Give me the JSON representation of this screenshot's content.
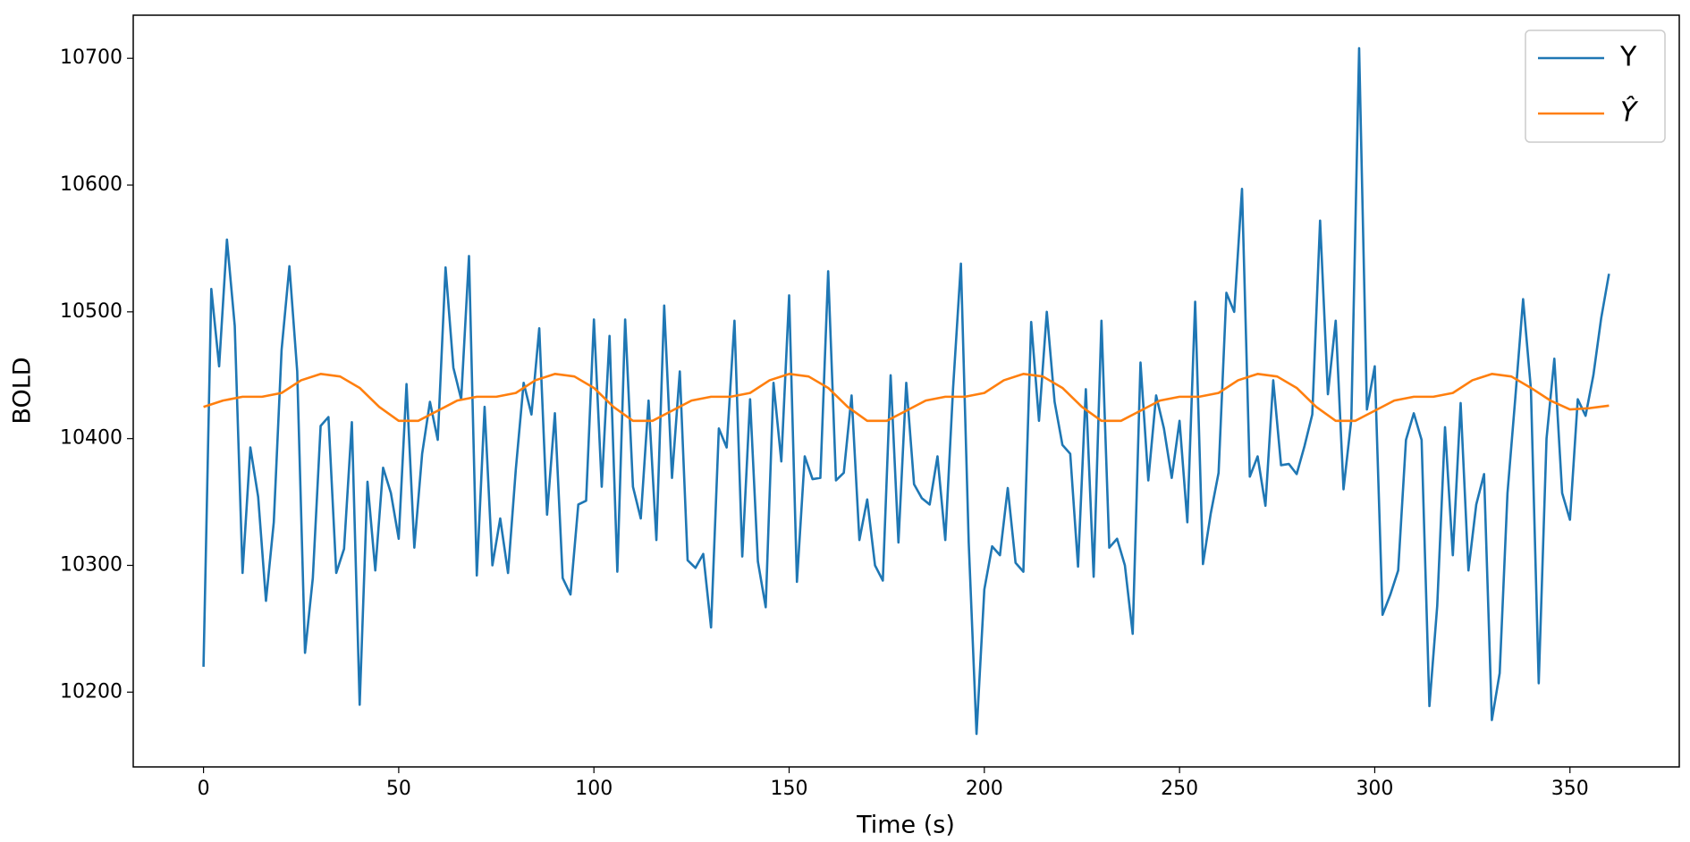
{
  "chart_data": {
    "type": "line",
    "x_label": "Time (s)",
    "y_label": "BOLD",
    "xlim": [
      -18,
      378
    ],
    "ylim": [
      10141,
      10734
    ],
    "xticks": [
      0,
      50,
      100,
      150,
      200,
      250,
      300,
      350
    ],
    "yticks": [
      10200,
      10300,
      10400,
      10500,
      10600,
      10700
    ],
    "legend": "upper right",
    "series": [
      {
        "name": "Y",
        "color": "#1f77b4",
        "x": [
          0,
          2,
          4,
          6,
          8,
          10,
          12,
          14,
          16,
          18,
          20,
          22,
          24,
          26,
          28,
          30,
          32,
          34,
          36,
          38,
          40,
          42,
          44,
          46,
          48,
          50,
          52,
          54,
          56,
          58,
          60,
          62,
          64,
          66,
          68,
          70,
          72,
          74,
          76,
          78,
          80,
          82,
          84,
          86,
          88,
          90,
          92,
          94,
          96,
          98,
          100,
          102,
          104,
          106,
          108,
          110,
          112,
          114,
          116,
          118,
          120,
          122,
          124,
          126,
          128,
          130,
          132,
          134,
          136,
          138,
          140,
          142,
          144,
          146,
          148,
          150,
          152,
          154,
          156,
          158,
          160,
          162,
          164,
          166,
          168,
          170,
          172,
          174,
          176,
          178,
          180,
          182,
          184,
          186,
          188,
          190,
          192,
          194,
          196,
          198,
          200,
          202,
          204,
          206,
          208,
          210,
          212,
          214,
          216,
          218,
          220,
          222,
          224,
          226,
          228,
          230,
          232,
          234,
          236,
          238,
          240,
          242,
          244,
          246,
          248,
          250,
          252,
          254,
          256,
          258,
          260,
          262,
          264,
          266,
          268,
          270,
          272,
          274,
          276,
          278,
          280,
          282,
          284,
          286,
          288,
          290,
          292,
          294,
          296,
          298,
          300,
          302,
          304,
          306,
          308,
          310,
          312,
          314,
          316,
          318,
          320,
          322,
          324,
          326,
          328,
          330,
          332,
          334,
          336,
          338,
          340,
          342,
          344,
          346,
          348,
          350,
          352,
          354,
          356,
          358,
          360
        ],
        "values": [
          10220,
          10518,
          10457,
          10557,
          10489,
          10294,
          10393,
          10354,
          10272,
          10334,
          10470,
          10536,
          10453,
          10231,
          10290,
          10410,
          10417,
          10294,
          10313,
          10413,
          10190,
          10366,
          10296,
          10377,
          10357,
          10321,
          10443,
          10314,
          10388,
          10429,
          10399,
          10535,
          10456,
          10431,
          10544,
          10292,
          10425,
          10300,
          10337,
          10294,
          10376,
          10444,
          10419,
          10487,
          10340,
          10420,
          10290,
          10277,
          10348,
          10351,
          10494,
          10362,
          10481,
          10295,
          10494,
          10362,
          10337,
          10430,
          10320,
          10505,
          10369,
          10453,
          10304,
          10298,
          10309,
          10251,
          10408,
          10393,
          10493,
          10307,
          10431,
          10303,
          10267,
          10444,
          10382,
          10513,
          10287,
          10386,
          10368,
          10369,
          10532,
          10367,
          10373,
          10434,
          10320,
          10352,
          10300,
          10288,
          10450,
          10318,
          10444,
          10364,
          10353,
          10348,
          10386,
          10320,
          10440,
          10538,
          10318,
          10167,
          10281,
          10315,
          10308,
          10361,
          10302,
          10295,
          10492,
          10414,
          10500,
          10429,
          10395,
          10388,
          10299,
          10439,
          10291,
          10493,
          10314,
          10321,
          10300,
          10246,
          10460,
          10367,
          10434,
          10408,
          10369,
          10414,
          10334,
          10508,
          10301,
          10341,
          10373,
          10515,
          10500,
          10597,
          10370,
          10386,
          10347,
          10446,
          10379,
          10380,
          10372,
          10394,
          10419,
          10572,
          10435,
          10493,
          10360,
          10415,
          10708,
          10423,
          10457,
          10261,
          10277,
          10296,
          10399,
          10420,
          10399,
          10189,
          10268,
          10409,
          10308,
          10428,
          10296,
          10348,
          10372,
          10178,
          10215,
          10357,
          10432,
          10510,
          10439,
          10207,
          10400,
          10463,
          10357,
          10336,
          10431,
          10418,
          10450,
          10495,
          10530
        ]
      },
      {
        "name": "Ŷ",
        "color": "#ff7f0e",
        "x": [
          0,
          5,
          10,
          15,
          20,
          25,
          30,
          35,
          40,
          45,
          50,
          55,
          60,
          65,
          70,
          75,
          80,
          85,
          90,
          95,
          100,
          105,
          110,
          115,
          120,
          125,
          130,
          135,
          140,
          145,
          150,
          155,
          160,
          165,
          170,
          175,
          180,
          185,
          190,
          195,
          200,
          205,
          210,
          215,
          220,
          225,
          230,
          235,
          240,
          245,
          250,
          255,
          260,
          265,
          270,
          275,
          280,
          285,
          290,
          295,
          300,
          305,
          310,
          315,
          320,
          325,
          330,
          335,
          340,
          345,
          350,
          355,
          360
        ],
        "values": [
          10425,
          10430,
          10433,
          10433,
          10436,
          10446,
          10451,
          10449,
          10440,
          10425,
          10414,
          10414,
          10422,
          10430,
          10433,
          10433,
          10436,
          10446,
          10451,
          10449,
          10440,
          10425,
          10414,
          10414,
          10422,
          10430,
          10433,
          10433,
          10436,
          10446,
          10451,
          10449,
          10440,
          10425,
          10414,
          10414,
          10422,
          10430,
          10433,
          10433,
          10436,
          10446,
          10451,
          10449,
          10440,
          10425,
          10414,
          10414,
          10422,
          10430,
          10433,
          10433,
          10436,
          10446,
          10451,
          10449,
          10440,
          10425,
          10414,
          10414,
          10422,
          10430,
          10433,
          10433,
          10436,
          10446,
          10451,
          10449,
          10440,
          10430,
          10423,
          10424,
          10426
        ]
      }
    ]
  }
}
